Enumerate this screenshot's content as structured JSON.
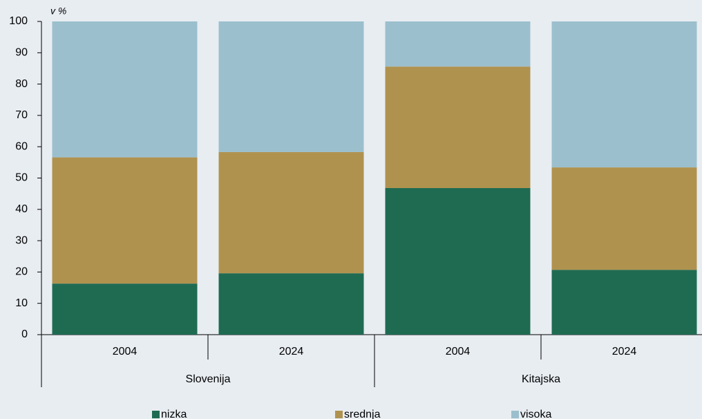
{
  "chart_data": {
    "type": "stacked_bar",
    "y_label": "v %",
    "categories": [
      "2004",
      "2024",
      "2004",
      "2024"
    ],
    "groups": [
      "Slovenija",
      "Kitajska"
    ],
    "series": [
      {
        "name": "nizka",
        "color": "#1f6b52",
        "values": [
          16.3,
          19.6,
          46.8,
          20.7
        ]
      },
      {
        "name": "srednja",
        "color": "#b0924f",
        "values": [
          40.3,
          38.7,
          38.8,
          32.7
        ]
      },
      {
        "name": "visoka",
        "color": "#9bbfcd",
        "values": [
          43.4,
          41.7,
          14.4,
          46.6
        ]
      }
    ],
    "ylim": [
      0,
      100
    ],
    "yticks": [
      0,
      10,
      20,
      30,
      40,
      50,
      60,
      70,
      80,
      90,
      100
    ],
    "grid": false
  }
}
